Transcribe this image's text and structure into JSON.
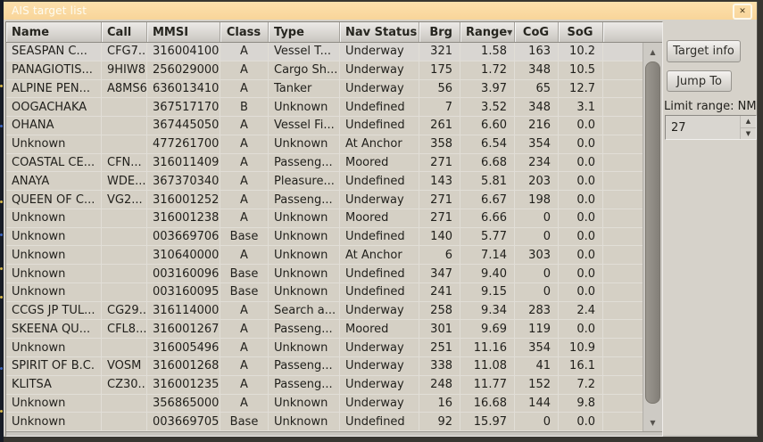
{
  "window": {
    "title": "AIS target list",
    "close_icon": "✕"
  },
  "colors": {
    "titlebar": "#f9d89e",
    "body_bg": "#d6d2ca",
    "row_bg": "#d5d0c5",
    "selected_row_bg": "#d9d6d2",
    "text": "#201f1b"
  },
  "table": {
    "columns": [
      {
        "id": "name",
        "label": "Name",
        "align": "left",
        "header_align": "left"
      },
      {
        "id": "call",
        "label": "Call",
        "align": "left",
        "header_align": "left"
      },
      {
        "id": "mmsi",
        "label": "MMSI",
        "align": "left",
        "header_align": "left"
      },
      {
        "id": "class",
        "label": "Class",
        "align": "center",
        "header_align": "center"
      },
      {
        "id": "type",
        "label": "Type",
        "align": "left",
        "header_align": "left"
      },
      {
        "id": "nav_status",
        "label": "Nav Status",
        "align": "left",
        "header_align": "left"
      },
      {
        "id": "brg",
        "label": "Brg",
        "align": "right",
        "header_align": "right"
      },
      {
        "id": "range",
        "label": "Range",
        "align": "right",
        "header_align": "left"
      },
      {
        "id": "cog",
        "label": "CoG",
        "align": "right",
        "header_align": "center"
      },
      {
        "id": "sog",
        "label": "SoG",
        "align": "right",
        "header_align": "center"
      },
      {
        "id": "spacer",
        "label": "",
        "align": "left",
        "header_align": "left"
      }
    ],
    "sort": {
      "column_id": "range",
      "icon": "▼"
    },
    "rows": [
      {
        "selected": true,
        "name": "SEASPAN C...",
        "call": "CFG7...",
        "mmsi": "316004100",
        "class": "A",
        "type": "Vessel T...",
        "nav_status": "Underway",
        "brg": "321",
        "range": "1.58",
        "cog": "163",
        "sog": "10.2"
      },
      {
        "selected": false,
        "name": "PANAGIOTIS...",
        "call": "9HIW8",
        "mmsi": "256029000",
        "class": "A",
        "type": "Cargo Sh...",
        "nav_status": "Underway",
        "brg": "175",
        "range": "1.72",
        "cog": "348",
        "sog": "10.5"
      },
      {
        "selected": false,
        "name": "ALPINE PEN...",
        "call": "A8MS6",
        "mmsi": "636013410",
        "class": "A",
        "type": "Tanker",
        "nav_status": "Underway",
        "brg": "56",
        "range": "3.97",
        "cog": "65",
        "sog": "12.7"
      },
      {
        "selected": false,
        "name": "OOGACHAKA",
        "call": "",
        "mmsi": "367517170",
        "class": "B",
        "type": "Unknown",
        "nav_status": "Undefined",
        "brg": "7",
        "range": "3.52",
        "cog": "348",
        "sog": "3.1"
      },
      {
        "selected": false,
        "name": "OHANA",
        "call": "",
        "mmsi": "367445050",
        "class": "A",
        "type": "Vessel Fi...",
        "nav_status": "Undefined",
        "brg": "261",
        "range": "6.60",
        "cog": "216",
        "sog": "0.0"
      },
      {
        "selected": false,
        "name": "Unknown",
        "call": "",
        "mmsi": "477261700",
        "class": "A",
        "type": "Unknown",
        "nav_status": "At Anchor",
        "brg": "358",
        "range": "6.54",
        "cog": "354",
        "sog": "0.0"
      },
      {
        "selected": false,
        "name": "COASTAL CE...",
        "call": "CFN...",
        "mmsi": "316011409",
        "class": "A",
        "type": "Passeng...",
        "nav_status": "Moored",
        "brg": "271",
        "range": "6.68",
        "cog": "234",
        "sog": "0.0"
      },
      {
        "selected": false,
        "name": "ANAYA",
        "call": "WDE...",
        "mmsi": "367370340",
        "class": "A",
        "type": "Pleasure...",
        "nav_status": "Undefined",
        "brg": "143",
        "range": "5.81",
        "cog": "203",
        "sog": "0.0"
      },
      {
        "selected": false,
        "name": "QUEEN OF C...",
        "call": "VG2...",
        "mmsi": "316001252",
        "class": "A",
        "type": "Passeng...",
        "nav_status": "Underway",
        "brg": "271",
        "range": "6.67",
        "cog": "198",
        "sog": "0.0"
      },
      {
        "selected": false,
        "name": "Unknown",
        "call": "",
        "mmsi": "316001238",
        "class": "A",
        "type": "Unknown",
        "nav_status": "Moored",
        "brg": "271",
        "range": "6.66",
        "cog": "0",
        "sog": "0.0"
      },
      {
        "selected": false,
        "name": "Unknown",
        "call": "",
        "mmsi": "003669706",
        "class": "Base",
        "type": "Unknown",
        "nav_status": "Undefined",
        "brg": "140",
        "range": "5.77",
        "cog": "0",
        "sog": "0.0"
      },
      {
        "selected": false,
        "name": "Unknown",
        "call": "",
        "mmsi": "310640000",
        "class": "A",
        "type": "Unknown",
        "nav_status": "At Anchor",
        "brg": "6",
        "range": "7.14",
        "cog": "303",
        "sog": "0.0"
      },
      {
        "selected": false,
        "name": "Unknown",
        "call": "",
        "mmsi": "003160096",
        "class": "Base",
        "type": "Unknown",
        "nav_status": "Undefined",
        "brg": "347",
        "range": "9.40",
        "cog": "0",
        "sog": "0.0"
      },
      {
        "selected": false,
        "name": "Unknown",
        "call": "",
        "mmsi": "003160095",
        "class": "Base",
        "type": "Unknown",
        "nav_status": "Undefined",
        "brg": "241",
        "range": "9.15",
        "cog": "0",
        "sog": "0.0"
      },
      {
        "selected": false,
        "name": "CCGS JP TUL...",
        "call": "CG29...",
        "mmsi": "316114000",
        "class": "A",
        "type": "Search a...",
        "nav_status": "Underway",
        "brg": "258",
        "range": "9.34",
        "cog": "283",
        "sog": "2.4"
      },
      {
        "selected": false,
        "name": "SKEENA QU...",
        "call": "CFL8...",
        "mmsi": "316001267",
        "class": "A",
        "type": "Passeng...",
        "nav_status": "Moored",
        "brg": "301",
        "range": "9.69",
        "cog": "119",
        "sog": "0.0"
      },
      {
        "selected": false,
        "name": "Unknown",
        "call": "",
        "mmsi": "316005496",
        "class": "A",
        "type": "Unknown",
        "nav_status": "Underway",
        "brg": "251",
        "range": "11.16",
        "cog": "354",
        "sog": "10.9"
      },
      {
        "selected": false,
        "name": "SPIRIT OF B.C.",
        "call": "VOSM",
        "mmsi": "316001268",
        "class": "A",
        "type": "Passeng...",
        "nav_status": "Underway",
        "brg": "338",
        "range": "11.08",
        "cog": "41",
        "sog": "16.1"
      },
      {
        "selected": false,
        "name": "KLITSA",
        "call": "CZ30...",
        "mmsi": "316001235",
        "class": "A",
        "type": "Passeng...",
        "nav_status": "Underway",
        "brg": "248",
        "range": "11.77",
        "cog": "152",
        "sog": "7.2"
      },
      {
        "selected": false,
        "name": "Unknown",
        "call": "",
        "mmsi": "356865000",
        "class": "A",
        "type": "Unknown",
        "nav_status": "Underway",
        "brg": "16",
        "range": "16.68",
        "cog": "144",
        "sog": "9.8"
      },
      {
        "selected": false,
        "name": "Unknown",
        "call": "",
        "mmsi": "003669705",
        "class": "Base",
        "type": "Unknown",
        "nav_status": "Undefined",
        "brg": "92",
        "range": "15.97",
        "cog": "0",
        "sog": "0.0"
      }
    ]
  },
  "scrollbar": {
    "up_icon": "▲",
    "down_icon": "▼"
  },
  "panel": {
    "target_info_label": "Target info",
    "jump_to_label": "Jump To",
    "limit_range_label": "Limit range: NM",
    "limit_range_value": "27",
    "spin_up_icon": "▲",
    "spin_down_icon": "▼"
  }
}
